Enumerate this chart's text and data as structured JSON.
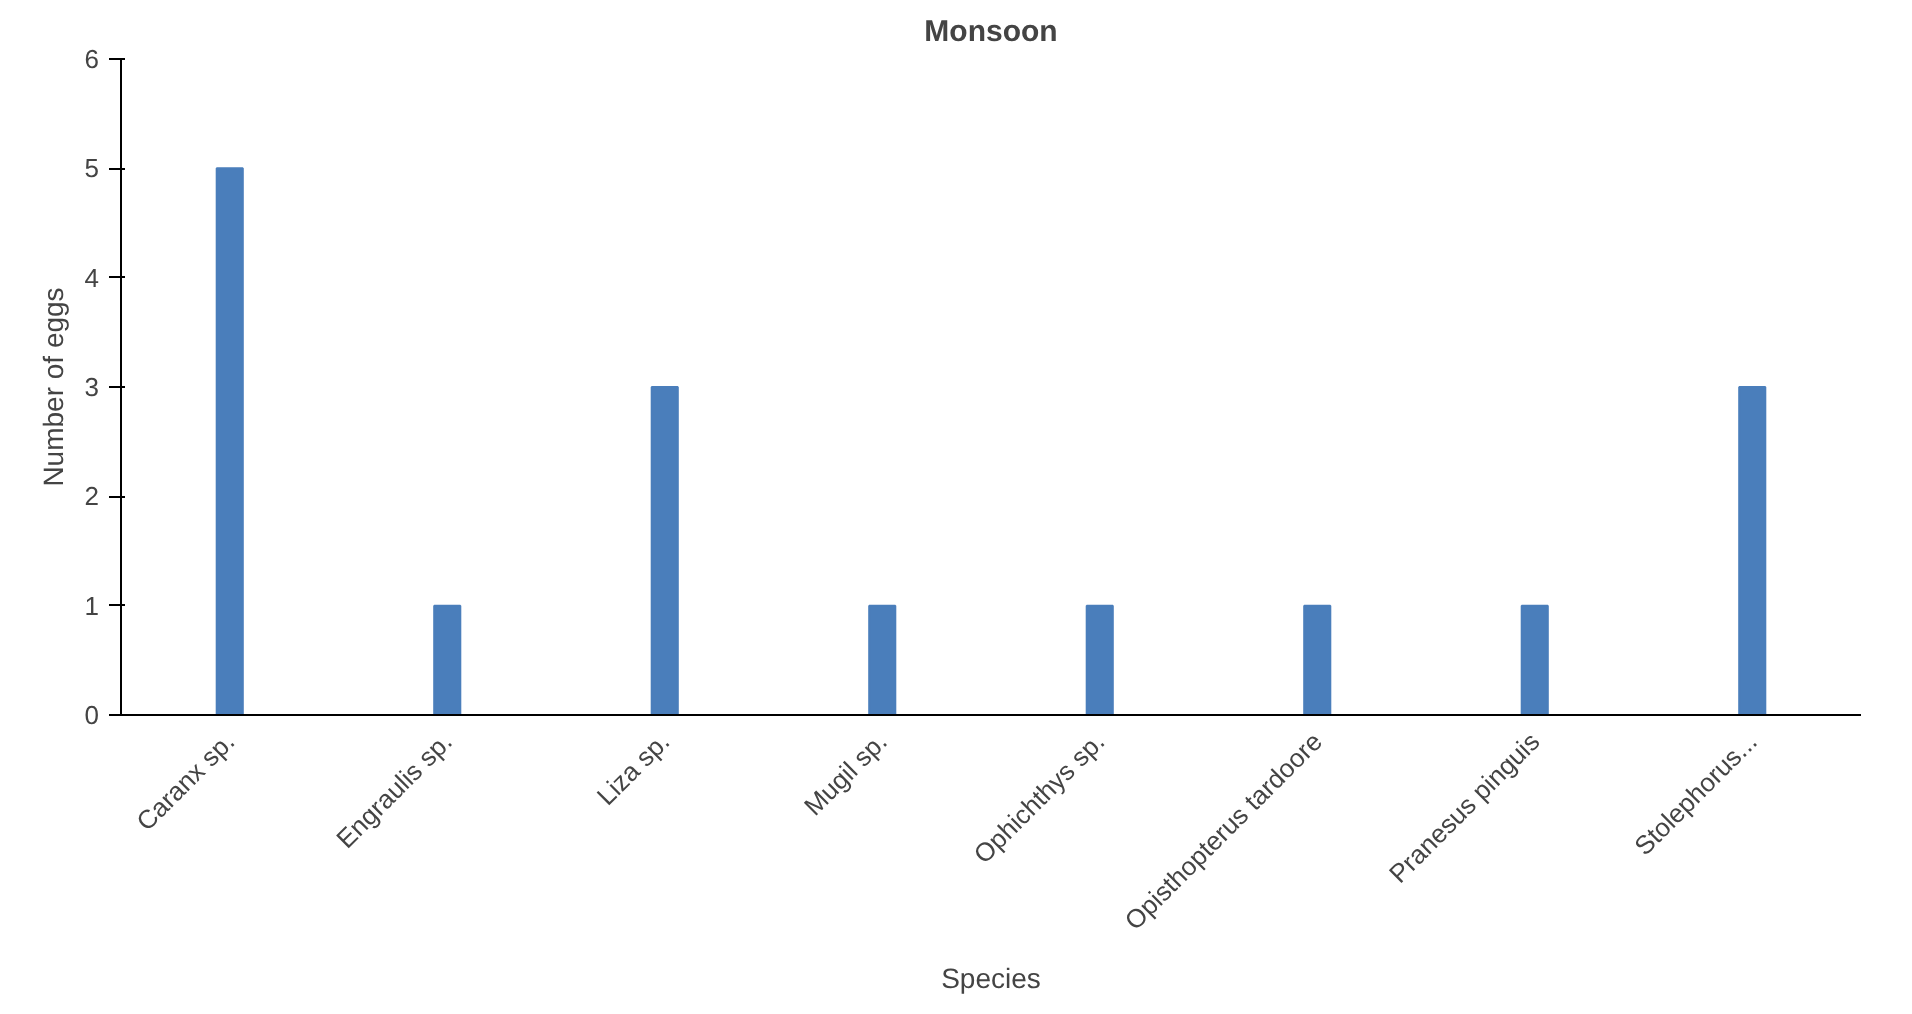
{
  "chart_data": {
    "type": "bar",
    "title": "Monsoon",
    "xlabel": "Species",
    "ylabel": "Number of eggs",
    "categories": [
      "Caranx sp.",
      "Engraulis sp.",
      "Liza sp.",
      "Mugil sp.",
      "Ophichthys sp.",
      "Opisthopterus tardoore",
      "Pranesus pinguis",
      "Stolephorus..."
    ],
    "values": [
      5,
      1,
      3,
      1,
      1,
      1,
      1,
      3
    ],
    "color": "#4a7ebb",
    "ylim": [
      0,
      6
    ],
    "yticks": [
      0,
      1,
      2,
      3,
      4,
      5,
      6
    ],
    "grid": false
  }
}
